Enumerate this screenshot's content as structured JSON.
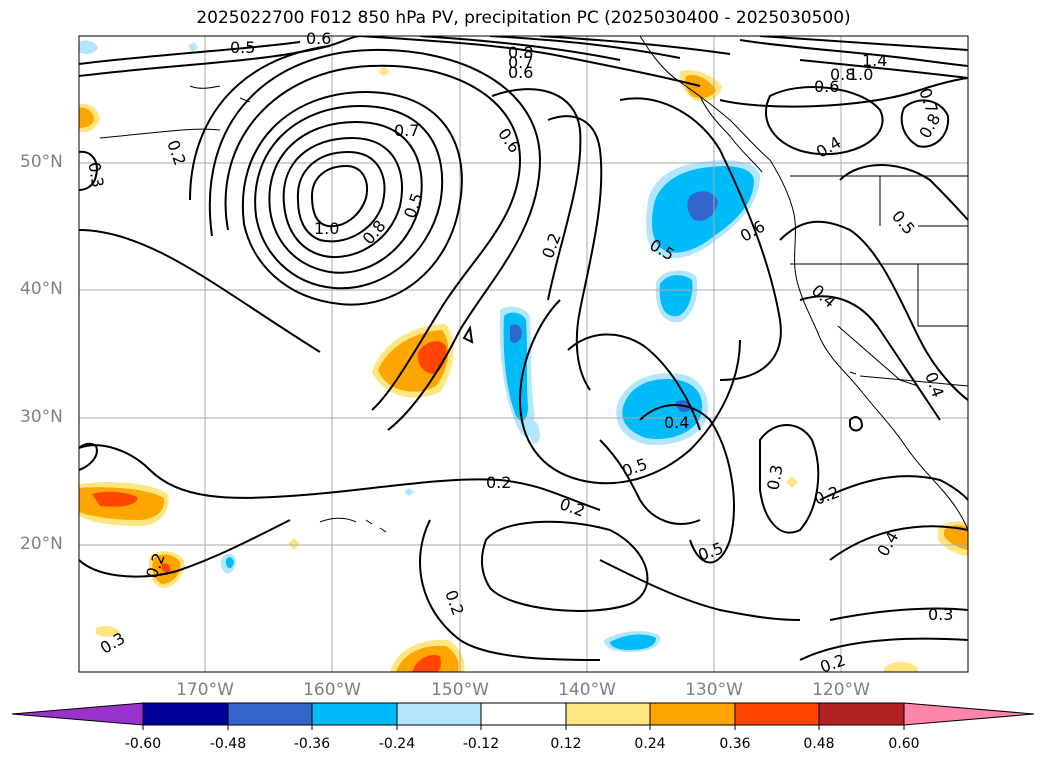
{
  "title": "2025022700 F012 850 hPa PV, precipitation PC (2025030400 - 2025030500)",
  "axes": {
    "lat_labels": [
      "50°N",
      "40°N",
      "30°N",
      "20°N"
    ],
    "lon_labels": [
      "170°W",
      "160°W",
      "150°W",
      "140°W",
      "130°W",
      "120°W"
    ]
  },
  "contour_labels": [
    "0.5",
    "0.6",
    "0.8",
    "0.7",
    "0.6",
    "1.4",
    "1.0",
    "0.8",
    "0.6",
    "0.7",
    "0.8",
    "0.3",
    "0.2",
    "0.7",
    "0.6",
    "0.4",
    "1.0",
    "0.8",
    "0.5",
    "0.2",
    "0.5",
    "0.6",
    "0.5",
    "0.4",
    "0.4",
    "0.4",
    "0.5",
    "0.3",
    "0.2",
    "0.2",
    "0.2",
    "0.5",
    "0.2",
    "0.2",
    "0.4",
    "0.3",
    "0.3",
    "0.2"
  ],
  "colorbar": {
    "colors": [
      "#9933cc",
      "#000099",
      "#3366cc",
      "#00bbf9",
      "#b3e5fc",
      "#ffffff",
      "#ffe680",
      "#ffa500",
      "#ff4500",
      "#b22222",
      "#ff85aa"
    ],
    "ticks": [
      "-0.60",
      "-0.48",
      "-0.36",
      "-0.24",
      "-0.12",
      "0.12",
      "0.24",
      "0.36",
      "0.48",
      "0.60"
    ]
  },
  "colors": {
    "grid": "#aaaaaa",
    "contour": "#000000",
    "axis_label": "#808080"
  }
}
